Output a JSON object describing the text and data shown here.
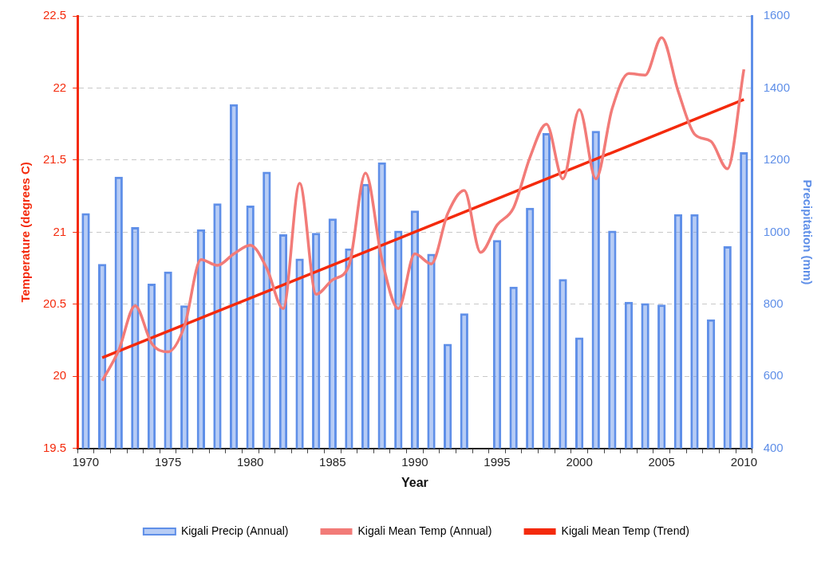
{
  "chart_data": {
    "type": "bar",
    "xlabel": "Year",
    "ylabel": "Temperature (degrees C)",
    "y2label": "Precipitation (mm)",
    "categories": [
      "1970",
      null,
      null,
      null,
      null,
      "1975",
      null,
      null,
      null,
      null,
      "1980",
      null,
      null,
      null,
      null,
      "1985",
      null,
      null,
      null,
      null,
      "1990",
      null,
      null,
      null,
      null,
      "1995",
      null,
      null,
      null,
      null,
      "2000",
      null,
      null,
      null,
      null,
      "2005",
      null,
      null,
      null,
      null,
      "2010"
    ],
    "series": [
      {
        "name": "Kigali Precip (Annual)",
        "axis": "y2",
        "color": "#5f8fe8",
        "values": [
          1053,
          912,
          1154,
          1014,
          857,
          891,
          797,
          1008,
          1080,
          1355,
          1074,
          1168,
          994,
          927,
          998,
          1038,
          955,
          1134,
          1194,
          1004,
          1060,
          940,
          690,
          775,
          null,
          978,
          849,
          1068,
          1275,
          870,
          708,
          1281,
          1004,
          807,
          803,
          799,
          1050,
          1050,
          758,
          961,
          1222
        ]
      },
      {
        "name": "Kigali Mean Temp (Annual)",
        "type": "line",
        "axis": "y",
        "color": "#f27b78",
        "values": [
          null,
          19.97,
          20.18,
          20.49,
          20.23,
          20.17,
          20.35,
          20.81,
          20.77,
          20.85,
          20.91,
          20.75,
          20.47,
          21.34,
          20.57,
          20.67,
          20.77,
          21.41,
          20.81,
          20.47,
          20.85,
          20.78,
          21.13,
          21.29,
          20.86,
          21.05,
          21.17,
          21.52,
          21.75,
          21.37,
          21.85,
          21.37,
          21.86,
          22.1,
          22.09,
          22.35,
          21.98,
          21.68,
          21.63,
          21.44,
          22.13
        ]
      },
      {
        "name": "Kigali Mean Temp (Trend)",
        "type": "line",
        "axis": "y",
        "color": "#f42a0c",
        "values": [
          null,
          20.13,
          null,
          null,
          null,
          null,
          null,
          null,
          null,
          null,
          null,
          null,
          null,
          null,
          null,
          null,
          null,
          null,
          null,
          null,
          null,
          null,
          null,
          null,
          null,
          null,
          null,
          null,
          null,
          null,
          null,
          null,
          null,
          null,
          null,
          null,
          null,
          null,
          null,
          null,
          21.92
        ]
      }
    ],
    "ylim": [
      19.5,
      22.5
    ],
    "yticks": [
      19.5,
      20,
      20.5,
      21,
      21.5,
      22,
      22.5
    ],
    "y2lim": [
      400,
      1600
    ],
    "y2ticks": [
      400,
      600,
      800,
      1000,
      1200,
      1400,
      1600
    ],
    "grid": "y",
    "legend": "bottom",
    "marker": "none",
    "line_style": "solid"
  }
}
